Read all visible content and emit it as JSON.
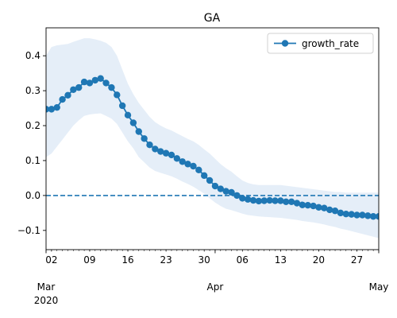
{
  "chart_data": {
    "type": "line",
    "title": "GA",
    "xlabel": "",
    "ylabel": "",
    "x_start": "2020-03-01",
    "x_end": "2020-05-01",
    "xlim": [
      "2020-03-01",
      "2020-05-01"
    ],
    "ylim": [
      -0.155,
      0.48
    ],
    "y_ticks": [
      "−0.1",
      "0.0",
      "0.1",
      "0.2",
      "0.3",
      "0.4"
    ],
    "y_tick_values": [
      -0.1,
      0.0,
      0.1,
      0.2,
      0.3,
      0.4
    ],
    "x_minor_ticks": [
      {
        "date": "2020-03-02",
        "label": "02"
      },
      {
        "date": "2020-03-09",
        "label": "09"
      },
      {
        "date": "2020-03-16",
        "label": "16"
      },
      {
        "date": "2020-03-23",
        "label": "23"
      },
      {
        "date": "2020-03-30",
        "label": "30"
      },
      {
        "date": "2020-04-06",
        "label": "06"
      },
      {
        "date": "2020-04-13",
        "label": "13"
      },
      {
        "date": "2020-04-20",
        "label": "20"
      },
      {
        "date": "2020-04-27",
        "label": "27"
      }
    ],
    "x_major_ticks": [
      {
        "date": "2020-03-01",
        "label": "Mar",
        "sublabel": "2020"
      },
      {
        "date": "2020-04-01",
        "label": "Apr",
        "sublabel": ""
      },
      {
        "date": "2020-05-01",
        "label": "May",
        "sublabel": ""
      }
    ],
    "legend": {
      "position": "top-right"
    },
    "grid": false,
    "reference_line": {
      "y": 0.0,
      "style": "dashed"
    },
    "colors": {
      "line": "#1f77b4",
      "band": "#dce8f5",
      "reference": "#1f77b4"
    },
    "series": [
      {
        "name": "growth_rate",
        "dates": [
          "2020-03-01",
          "2020-03-02",
          "2020-03-03",
          "2020-03-04",
          "2020-03-05",
          "2020-03-06",
          "2020-03-07",
          "2020-03-08",
          "2020-03-09",
          "2020-03-10",
          "2020-03-11",
          "2020-03-12",
          "2020-03-13",
          "2020-03-14",
          "2020-03-15",
          "2020-03-16",
          "2020-03-17",
          "2020-03-18",
          "2020-03-19",
          "2020-03-20",
          "2020-03-21",
          "2020-03-22",
          "2020-03-23",
          "2020-03-24",
          "2020-03-25",
          "2020-03-26",
          "2020-03-27",
          "2020-03-28",
          "2020-03-29",
          "2020-03-30",
          "2020-03-31",
          "2020-04-01",
          "2020-04-02",
          "2020-04-03",
          "2020-04-04",
          "2020-04-05",
          "2020-04-06",
          "2020-04-07",
          "2020-04-08",
          "2020-04-09",
          "2020-04-10",
          "2020-04-11",
          "2020-04-12",
          "2020-04-13",
          "2020-04-14",
          "2020-04-15",
          "2020-04-16",
          "2020-04-17",
          "2020-04-18",
          "2020-04-19",
          "2020-04-20",
          "2020-04-21",
          "2020-04-22",
          "2020-04-23",
          "2020-04-24",
          "2020-04-25",
          "2020-04-26",
          "2020-04-27",
          "2020-04-28",
          "2020-04-29",
          "2020-04-30",
          "2020-05-01"
        ],
        "values": [
          0.247,
          0.247,
          0.252,
          0.275,
          0.287,
          0.303,
          0.309,
          0.325,
          0.322,
          0.33,
          0.335,
          0.322,
          0.309,
          0.288,
          0.257,
          0.23,
          0.208,
          0.183,
          0.163,
          0.145,
          0.133,
          0.126,
          0.121,
          0.116,
          0.106,
          0.097,
          0.09,
          0.084,
          0.073,
          0.057,
          0.043,
          0.027,
          0.019,
          0.012,
          0.009,
          0.0,
          -0.008,
          -0.011,
          -0.014,
          -0.016,
          -0.015,
          -0.014,
          -0.015,
          -0.015,
          -0.018,
          -0.018,
          -0.022,
          -0.027,
          -0.028,
          -0.03,
          -0.034,
          -0.036,
          -0.041,
          -0.044,
          -0.05,
          -0.053,
          -0.054,
          -0.056,
          -0.056,
          -0.058,
          -0.06,
          -0.06
        ],
        "lower": [
          0.11,
          0.12,
          0.14,
          0.16,
          0.18,
          0.2,
          0.215,
          0.228,
          0.232,
          0.234,
          0.235,
          0.228,
          0.22,
          0.205,
          0.18,
          0.155,
          0.135,
          0.11,
          0.095,
          0.08,
          0.07,
          0.065,
          0.06,
          0.055,
          0.048,
          0.04,
          0.033,
          0.025,
          0.015,
          0.005,
          -0.008,
          -0.02,
          -0.03,
          -0.038,
          -0.042,
          -0.047,
          -0.052,
          -0.056,
          -0.058,
          -0.06,
          -0.061,
          -0.062,
          -0.063,
          -0.064,
          -0.066,
          -0.068,
          -0.07,
          -0.073,
          -0.075,
          -0.077,
          -0.08,
          -0.083,
          -0.087,
          -0.09,
          -0.095,
          -0.098,
          -0.102,
          -0.106,
          -0.11,
          -0.114,
          -0.118,
          -0.122
        ],
        "upper": [
          0.4,
          0.425,
          0.43,
          0.432,
          0.434,
          0.44,
          0.445,
          0.45,
          0.45,
          0.447,
          0.443,
          0.437,
          0.425,
          0.4,
          0.36,
          0.32,
          0.29,
          0.265,
          0.245,
          0.225,
          0.21,
          0.2,
          0.192,
          0.186,
          0.178,
          0.17,
          0.162,
          0.155,
          0.145,
          0.132,
          0.12,
          0.105,
          0.09,
          0.078,
          0.068,
          0.055,
          0.043,
          0.036,
          0.032,
          0.03,
          0.03,
          0.03,
          0.03,
          0.03,
          0.028,
          0.026,
          0.024,
          0.022,
          0.02,
          0.018,
          0.016,
          0.014,
          0.012,
          0.01,
          0.01,
          0.008,
          0.008,
          0.008,
          0.008,
          0.008,
          0.008,
          0.008
        ]
      }
    ]
  }
}
